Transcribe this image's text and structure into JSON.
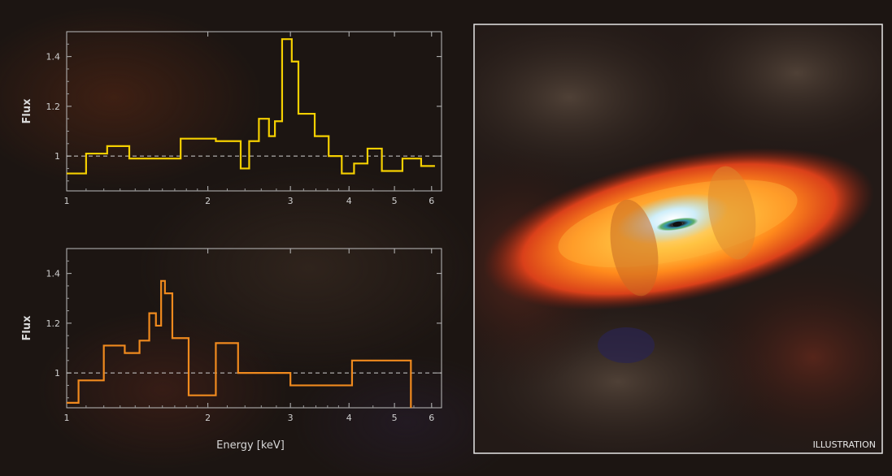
{
  "chart_data": [
    {
      "type": "line",
      "ylabel": "Flux",
      "xlabel": "",
      "x_ticks": [
        "1",
        "2",
        "3",
        "4",
        "5",
        "6"
      ],
      "y_ticks": [
        "1",
        "1.2",
        "1.4"
      ],
      "xlim": [
        1,
        6.3
      ],
      "ylim": [
        0.86,
        1.5
      ],
      "log_x": true,
      "reference_line": 1.0,
      "series": [
        {
          "color": "#f5d000",
          "step_x": [
            1.0,
            1.1,
            1.22,
            1.36,
            1.55,
            1.75,
            2.08,
            2.35,
            2.45,
            2.57,
            2.7,
            2.78,
            2.88,
            3.02,
            3.12,
            3.38,
            3.62,
            3.86,
            4.1,
            4.38,
            4.7,
            5.2,
            5.7
          ],
          "step_y": [
            0.93,
            1.01,
            1.04,
            0.99,
            0.99,
            1.07,
            1.06,
            0.95,
            1.06,
            1.15,
            1.08,
            1.14,
            1.47,
            1.38,
            1.17,
            1.08,
            1.0,
            0.93,
            0.97,
            1.03,
            0.94,
            0.99,
            0.96
          ],
          "x_end": 6.1
        }
      ]
    },
    {
      "type": "line",
      "ylabel": "Flux",
      "xlabel": "Energy [keV]",
      "x_ticks": [
        "1",
        "2",
        "3",
        "4",
        "5",
        "6"
      ],
      "y_ticks": [
        "1",
        "1.2",
        "1.4"
      ],
      "xlim": [
        1,
        6.3
      ],
      "ylim": [
        0.86,
        1.5
      ],
      "log_x": true,
      "reference_line": 1.0,
      "series": [
        {
          "color": "#f08a1e",
          "step_x": [
            1.0,
            1.06,
            1.2,
            1.33,
            1.43,
            1.5,
            1.55,
            1.59,
            1.62,
            1.68,
            1.82,
            2.08,
            2.32,
            3.0,
            4.06
          ],
          "step_y": [
            0.88,
            0.97,
            1.11,
            1.08,
            1.13,
            1.24,
            1.19,
            1.37,
            1.32,
            1.14,
            0.91,
            1.12,
            1.0,
            0.95,
            1.05
          ],
          "x_end": 5.42,
          "drop_to": 0.86
        }
      ]
    }
  ],
  "illustration": {
    "label": "ILLUSTRATION"
  }
}
